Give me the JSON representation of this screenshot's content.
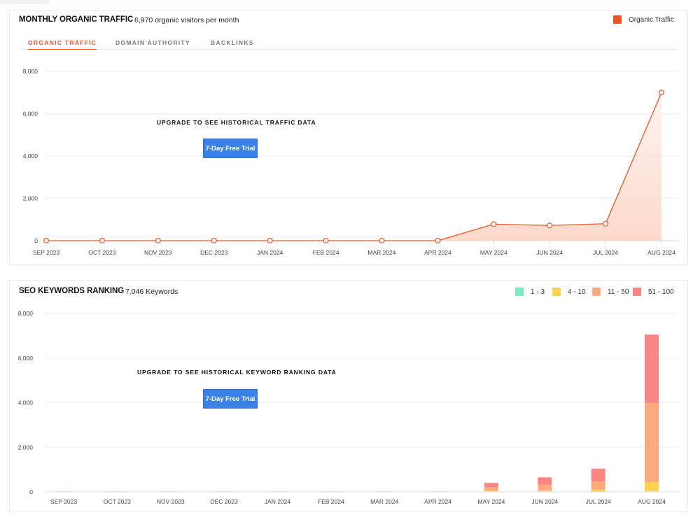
{
  "traffic": {
    "title": "MONTHLY ORGANIC TRAFFIC",
    "subtitle": "6,970 organic visitors per month",
    "legend_label": "Organic Traffic",
    "tabs": [
      "ORGANIC TRAFFIC",
      "DOMAIN AUTHORITY",
      "BACKLINKS"
    ],
    "active_tab": 0,
    "upgrade_text": "UPGRADE TO SEE HISTORICAL TRAFFIC DATA",
    "trial_button": "7-Day Free Trial",
    "line_color": "#e8572a"
  },
  "keywords": {
    "title": "SEO KEYWORDS RANKING",
    "subtitle": "7,046 Keywords",
    "legend": [
      {
        "label": "1 - 3",
        "color": "#7de8c4"
      },
      {
        "label": "4 - 10",
        "color": "#fcd34d"
      },
      {
        "label": "11 - 50",
        "color": "#fdab7e"
      },
      {
        "label": "51 - 100",
        "color": "#f98585"
      }
    ],
    "upgrade_text": "UPGRADE TO SEE HISTORICAL KEYWORD RANKING DATA",
    "trial_button": "7-Day Free Trial"
  },
  "chart_data": [
    {
      "type": "area",
      "categories": [
        "SEP 2023",
        "OCT 2023",
        "NOV 2023",
        "DEC 2023",
        "JAN 2024",
        "FEB 2024",
        "MAR 2024",
        "APR 2024",
        "MAY 2024",
        "JUN 2024",
        "JUL 2024",
        "AUG 2024"
      ],
      "series": [
        {
          "name": "Organic Traffic",
          "values": [
            0,
            0,
            0,
            0,
            0,
            0,
            0,
            0,
            780,
            720,
            800,
            7000
          ]
        }
      ],
      "ylim": [
        0,
        8000
      ],
      "yticks": [
        "0",
        "2,000",
        "4,000",
        "6,000",
        "8,000"
      ],
      "grid": true,
      "legend_position": "top-right"
    },
    {
      "type": "bar",
      "stacked": true,
      "categories": [
        "SEP 2023",
        "OCT 2023",
        "NOV 2023",
        "DEC 2023",
        "JAN 2024",
        "FEB 2024",
        "MAR 2024",
        "APR 2024",
        "MAY 2024",
        "JUN 2024",
        "JUL 2024",
        "AUG 2024"
      ],
      "series": [
        {
          "name": "1 - 3",
          "values": [
            0,
            0,
            0,
            0,
            0,
            0,
            0,
            0,
            10,
            10,
            20,
            40
          ]
        },
        {
          "name": "4 - 10",
          "values": [
            0,
            0,
            0,
            0,
            0,
            0,
            0,
            0,
            40,
            60,
            80,
            400
          ]
        },
        {
          "name": "11 - 50",
          "values": [
            0,
            0,
            0,
            0,
            0,
            0,
            0,
            0,
            150,
            250,
            360,
            3560
          ]
        },
        {
          "name": "51 - 100",
          "values": [
            0,
            0,
            0,
            0,
            0,
            0,
            0,
            0,
            200,
            330,
            580,
            3050
          ]
        }
      ],
      "ylim": [
        0,
        8000
      ],
      "yticks": [
        "0",
        "2,000",
        "4,000",
        "6,000",
        "8,000"
      ],
      "grid": true,
      "legend_position": "top-right"
    }
  ]
}
